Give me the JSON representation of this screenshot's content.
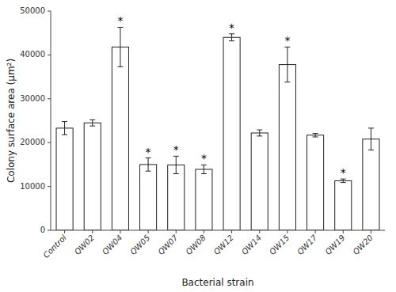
{
  "chart_data": {
    "type": "bar",
    "xlabel": "Bacterial strain",
    "ylabel": "Colony surface area (μm²)",
    "categories": [
      "Control",
      "QW02",
      "QW04",
      "QW05",
      "QW07",
      "QW08",
      "QW12",
      "QW14",
      "QW15",
      "QW17",
      "QW19",
      "QW20"
    ],
    "values": [
      23300,
      24500,
      41800,
      15000,
      14900,
      13900,
      44000,
      22200,
      37800,
      21700,
      11300,
      20800
    ],
    "errors": [
      1500,
      700,
      4500,
      1500,
      2000,
      1000,
      800,
      700,
      4000,
      400,
      400,
      2500
    ],
    "annotations": [
      null,
      null,
      "*",
      "*",
      "*",
      "*",
      "*",
      null,
      "*",
      null,
      "*",
      null
    ],
    "color": "#ffffff",
    "ylim": [
      0,
      50000
    ],
    "yticks": [
      0,
      10000,
      20000,
      30000,
      40000,
      50000
    ],
    "grid": false
  }
}
